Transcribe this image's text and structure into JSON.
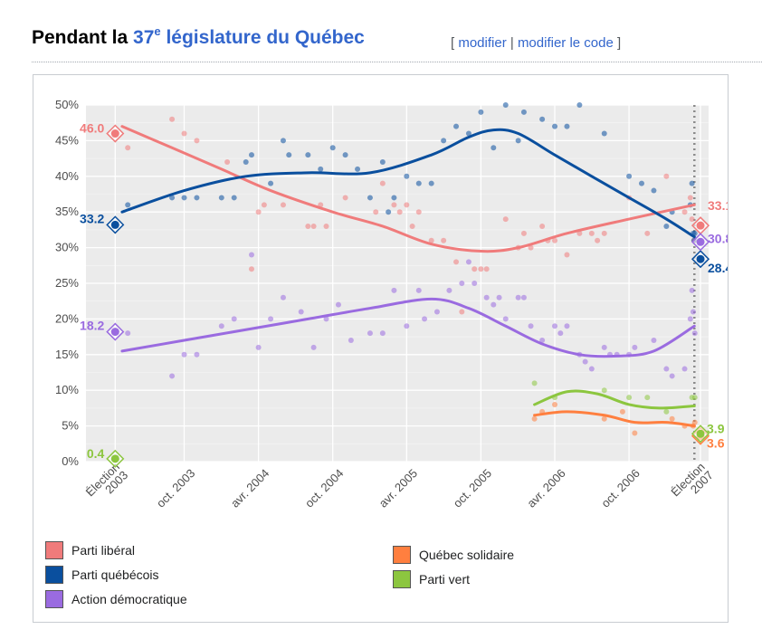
{
  "heading": {
    "title_prefix": "Pendant la ",
    "title_number": "37",
    "title_sup": "e",
    "title_rest": " législature du Québec",
    "edit_open": "[ ",
    "edit_link": "modifier",
    "edit_sep": " | ",
    "edit_code_link": "modifier le code",
    "edit_close": " ]"
  },
  "chart_data": {
    "type": "line",
    "title": "",
    "xlabel": "",
    "ylabel": "",
    "ylim": [
      0,
      50
    ],
    "xlim": [
      "2003-02-01",
      "2007-04-15"
    ],
    "grid": true,
    "legend_position": "bottom",
    "y_ticks": [
      "0%",
      "5%",
      "10%",
      "15%",
      "20%",
      "25%",
      "30%",
      "35%",
      "40%",
      "45%",
      "50%"
    ],
    "x_ticks": [
      {
        "label": "Élection\n2003",
        "date": "2003-04-14"
      },
      {
        "label": "oct. 2003",
        "date": "2003-10-01"
      },
      {
        "label": "avr. 2004",
        "date": "2004-04-01"
      },
      {
        "label": "oct. 2004",
        "date": "2004-10-01"
      },
      {
        "label": "avr. 2005",
        "date": "2005-04-01"
      },
      {
        "label": "oct. 2005",
        "date": "2005-10-01"
      },
      {
        "label": "avr. 2006",
        "date": "2006-04-01"
      },
      {
        "label": "oct. 2006",
        "date": "2006-10-01"
      },
      {
        "label": "Élection\n2007",
        "date": "2007-03-26"
      }
    ],
    "election_line_date": "2007-03-11",
    "series": [
      {
        "name": "Parti libéral",
        "color": "#f07b7b",
        "start_result": {
          "date": "2003-04-14",
          "value": 46.0,
          "label": "46.0"
        },
        "end_result": {
          "date": "2007-03-26",
          "value": 33.1,
          "label": "33.1"
        },
        "trend": [
          [
            "2003-05-01",
            47
          ],
          [
            "2003-09-01",
            44
          ],
          [
            "2004-01-01",
            41
          ],
          [
            "2004-05-01",
            38
          ],
          [
            "2004-10-01",
            35
          ],
          [
            "2005-02-01",
            33
          ],
          [
            "2005-06-01",
            30.5
          ],
          [
            "2005-10-01",
            29.5
          ],
          [
            "2006-01-01",
            30
          ],
          [
            "2006-05-01",
            32
          ],
          [
            "2006-10-01",
            34
          ],
          [
            "2007-03-11",
            36
          ]
        ],
        "polls": [
          [
            "2003-05-15",
            44
          ],
          [
            "2003-09-01",
            48
          ],
          [
            "2003-10-01",
            46
          ],
          [
            "2003-11-01",
            45
          ],
          [
            "2004-01-15",
            42
          ],
          [
            "2004-03-15",
            27
          ],
          [
            "2004-04-01",
            35
          ],
          [
            "2004-04-15",
            36
          ],
          [
            "2004-06-01",
            36
          ],
          [
            "2004-08-01",
            33
          ],
          [
            "2004-08-15",
            33
          ],
          [
            "2004-09-01",
            36
          ],
          [
            "2004-09-15",
            33
          ],
          [
            "2004-11-01",
            37
          ],
          [
            "2005-01-15",
            35
          ],
          [
            "2005-02-01",
            39
          ],
          [
            "2005-03-01",
            36
          ],
          [
            "2005-03-15",
            35
          ],
          [
            "2005-04-01",
            36
          ],
          [
            "2005-04-15",
            33
          ],
          [
            "2005-05-01",
            35
          ],
          [
            "2005-06-01",
            31
          ],
          [
            "2005-07-01",
            31
          ],
          [
            "2005-08-01",
            28
          ],
          [
            "2005-08-15",
            21
          ],
          [
            "2005-09-15",
            27
          ],
          [
            "2005-10-01",
            27
          ],
          [
            "2005-10-15",
            27
          ],
          [
            "2005-12-01",
            34
          ],
          [
            "2006-01-01",
            30
          ],
          [
            "2006-01-15",
            32
          ],
          [
            "2006-02-01",
            30
          ],
          [
            "2006-03-01",
            33
          ],
          [
            "2006-03-15",
            31
          ],
          [
            "2006-04-01",
            31
          ],
          [
            "2006-05-01",
            29
          ],
          [
            "2006-06-01",
            32
          ],
          [
            "2006-07-01",
            32
          ],
          [
            "2006-07-15",
            31
          ],
          [
            "2006-08-01",
            32
          ],
          [
            "2006-10-01",
            37
          ],
          [
            "2006-11-15",
            32
          ],
          [
            "2007-01-01",
            40
          ],
          [
            "2007-02-15",
            35
          ],
          [
            "2007-03-01",
            37
          ],
          [
            "2007-03-05",
            34
          ],
          [
            "2007-03-10",
            31
          ]
        ]
      },
      {
        "name": "Parti québécois",
        "color": "#0a4f9e",
        "start_result": {
          "date": "2003-04-14",
          "value": 33.2,
          "label": "33.2"
        },
        "end_result": {
          "date": "2007-03-26",
          "value": 28.4,
          "label": "28.4"
        },
        "trend": [
          [
            "2003-05-01",
            35
          ],
          [
            "2003-10-01",
            38
          ],
          [
            "2004-03-01",
            40
          ],
          [
            "2004-08-01",
            40.5
          ],
          [
            "2005-01-01",
            40.5
          ],
          [
            "2005-06-01",
            43
          ],
          [
            "2005-09-01",
            45.5
          ],
          [
            "2005-11-01",
            46.5
          ],
          [
            "2006-01-01",
            46
          ],
          [
            "2006-04-01",
            43
          ],
          [
            "2006-07-01",
            40
          ],
          [
            "2006-10-01",
            37
          ],
          [
            "2007-01-01",
            34
          ],
          [
            "2007-03-11",
            31.5
          ]
        ],
        "polls": [
          [
            "2003-05-15",
            36
          ],
          [
            "2003-09-01",
            37
          ],
          [
            "2003-10-01",
            37
          ],
          [
            "2003-11-01",
            37
          ],
          [
            "2004-01-01",
            37
          ],
          [
            "2004-02-01",
            37
          ],
          [
            "2004-03-01",
            42
          ],
          [
            "2004-03-15",
            43
          ],
          [
            "2004-05-01",
            39
          ],
          [
            "2004-06-01",
            45
          ],
          [
            "2004-06-15",
            43
          ],
          [
            "2004-08-01",
            43
          ],
          [
            "2004-09-01",
            41
          ],
          [
            "2004-10-01",
            44
          ],
          [
            "2004-11-01",
            43
          ],
          [
            "2004-12-01",
            41
          ],
          [
            "2005-01-01",
            37
          ],
          [
            "2005-02-01",
            42
          ],
          [
            "2005-02-15",
            35
          ],
          [
            "2005-03-01",
            37
          ],
          [
            "2005-04-01",
            40
          ],
          [
            "2005-05-01",
            39
          ],
          [
            "2005-06-01",
            39
          ],
          [
            "2005-07-01",
            45
          ],
          [
            "2005-08-01",
            47
          ],
          [
            "2005-09-01",
            46
          ],
          [
            "2005-10-01",
            49
          ],
          [
            "2005-11-01",
            44
          ],
          [
            "2005-12-01",
            50
          ],
          [
            "2006-01-01",
            45
          ],
          [
            "2006-01-15",
            49
          ],
          [
            "2006-03-01",
            48
          ],
          [
            "2006-04-01",
            47
          ],
          [
            "2006-05-01",
            47
          ],
          [
            "2006-06-01",
            50
          ],
          [
            "2006-08-01",
            46
          ],
          [
            "2006-10-01",
            40
          ],
          [
            "2006-11-01",
            39
          ],
          [
            "2006-12-01",
            38
          ],
          [
            "2007-01-01",
            33
          ],
          [
            "2007-01-15",
            35
          ],
          [
            "2007-03-01",
            36
          ],
          [
            "2007-03-05",
            39
          ],
          [
            "2007-03-08",
            32
          ],
          [
            "2007-03-10",
            31
          ],
          [
            "2007-03-12",
            32
          ]
        ]
      },
      {
        "name": "Action démocratique",
        "color": "#9a6be0",
        "start_result": {
          "date": "2003-04-14",
          "value": 18.2,
          "label": "18.2"
        },
        "end_result": {
          "date": "2007-03-26",
          "value": 30.8,
          "label": "30.8"
        },
        "trend": [
          [
            "2003-05-01",
            15.5
          ],
          [
            "2003-10-01",
            17
          ],
          [
            "2004-03-01",
            18.5
          ],
          [
            "2004-08-01",
            20
          ],
          [
            "2005-01-01",
            21.5
          ],
          [
            "2005-06-01",
            22.8
          ],
          [
            "2005-09-01",
            21.5
          ],
          [
            "2005-12-01",
            19
          ],
          [
            "2006-03-01",
            16.5
          ],
          [
            "2006-06-01",
            15
          ],
          [
            "2006-09-01",
            14.8
          ],
          [
            "2006-12-01",
            15.5
          ],
          [
            "2007-03-11",
            19
          ]
        ],
        "polls": [
          [
            "2003-05-15",
            18
          ],
          [
            "2003-09-01",
            12
          ],
          [
            "2003-10-01",
            15
          ],
          [
            "2003-11-01",
            15
          ],
          [
            "2004-01-01",
            19
          ],
          [
            "2004-02-01",
            20
          ],
          [
            "2004-03-15",
            29
          ],
          [
            "2004-04-01",
            16
          ],
          [
            "2004-05-01",
            20
          ],
          [
            "2004-06-01",
            23
          ],
          [
            "2004-07-15",
            21
          ],
          [
            "2004-08-15",
            16
          ],
          [
            "2004-09-15",
            20
          ],
          [
            "2004-10-15",
            22
          ],
          [
            "2004-11-15",
            17
          ],
          [
            "2005-01-01",
            18
          ],
          [
            "2005-02-01",
            18
          ],
          [
            "2005-03-01",
            24
          ],
          [
            "2005-04-01",
            19
          ],
          [
            "2005-05-01",
            24
          ],
          [
            "2005-05-15",
            20
          ],
          [
            "2005-06-15",
            21
          ],
          [
            "2005-07-15",
            24
          ],
          [
            "2005-08-15",
            25
          ],
          [
            "2005-09-01",
            28
          ],
          [
            "2005-09-15",
            25
          ],
          [
            "2005-10-15",
            23
          ],
          [
            "2005-11-01",
            22
          ],
          [
            "2005-11-15",
            23
          ],
          [
            "2005-12-01",
            20
          ],
          [
            "2006-01-01",
            23
          ],
          [
            "2006-01-15",
            23
          ],
          [
            "2006-02-01",
            19
          ],
          [
            "2006-03-01",
            17
          ],
          [
            "2006-04-01",
            19
          ],
          [
            "2006-04-15",
            18
          ],
          [
            "2006-05-01",
            19
          ],
          [
            "2006-06-01",
            15
          ],
          [
            "2006-06-15",
            14
          ],
          [
            "2006-07-01",
            13
          ],
          [
            "2006-08-01",
            16
          ],
          [
            "2006-08-15",
            15
          ],
          [
            "2006-09-01",
            15
          ],
          [
            "2006-10-01",
            15
          ],
          [
            "2006-10-15",
            16
          ],
          [
            "2006-12-01",
            17
          ],
          [
            "2007-01-01",
            13
          ],
          [
            "2007-01-15",
            12
          ],
          [
            "2007-02-15",
            13
          ],
          [
            "2007-03-01",
            20
          ],
          [
            "2007-03-05",
            24
          ],
          [
            "2007-03-08",
            21
          ],
          [
            "2007-03-12",
            18
          ]
        ]
      },
      {
        "name": "Québec solidaire",
        "color": "#ff7f3f",
        "end_result": {
          "date": "2007-03-26",
          "value": 3.6,
          "label": "3.6"
        },
        "trend": [
          [
            "2006-02-10",
            6.5
          ],
          [
            "2006-05-01",
            7
          ],
          [
            "2006-08-01",
            6.5
          ],
          [
            "2006-10-15",
            5.5
          ],
          [
            "2007-01-01",
            5.5
          ],
          [
            "2007-03-11",
            5
          ]
        ],
        "polls": [
          [
            "2006-02-10",
            6
          ],
          [
            "2006-03-01",
            7
          ],
          [
            "2006-04-01",
            8
          ],
          [
            "2006-08-01",
            6
          ],
          [
            "2006-09-15",
            7
          ],
          [
            "2006-10-15",
            4
          ],
          [
            "2007-01-15",
            6
          ],
          [
            "2007-02-15",
            5
          ],
          [
            "2007-03-08",
            5
          ],
          [
            "2007-03-12",
            5.5
          ]
        ]
      },
      {
        "name": "Parti vert",
        "color": "#8cc63f",
        "start_result": {
          "date": "2003-04-14",
          "value": 0.4,
          "label": "0.4"
        },
        "end_result": {
          "date": "2007-03-26",
          "value": 3.9,
          "label": "3.9"
        },
        "trend": [
          [
            "2006-02-10",
            8
          ],
          [
            "2006-05-01",
            9.8
          ],
          [
            "2006-07-15",
            9.5
          ],
          [
            "2006-10-01",
            8
          ],
          [
            "2006-12-15",
            7.5
          ],
          [
            "2007-03-11",
            7.8
          ]
        ],
        "polls": [
          [
            "2006-02-10",
            11
          ],
          [
            "2006-04-01",
            9
          ],
          [
            "2006-08-01",
            10
          ],
          [
            "2006-10-01",
            9
          ],
          [
            "2006-11-15",
            9
          ],
          [
            "2007-01-01",
            7
          ],
          [
            "2007-03-05",
            9
          ],
          [
            "2007-03-12",
            9
          ]
        ]
      }
    ]
  }
}
